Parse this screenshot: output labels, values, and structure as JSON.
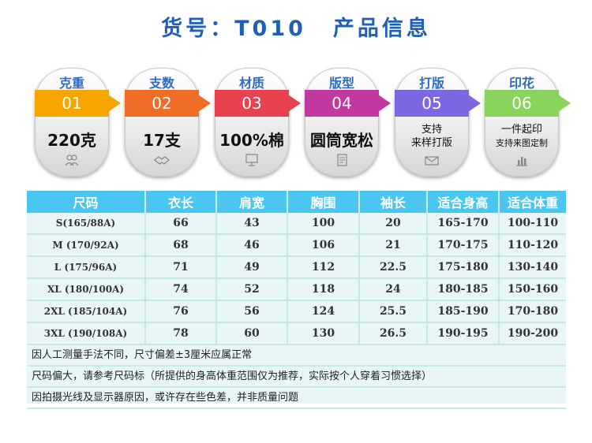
{
  "header": {
    "item_no": "货号：T010",
    "title": "产品信息"
  },
  "cards": [
    {
      "label": "克重",
      "index": "01",
      "value": "220克",
      "color": "#f7a600",
      "label_color": "#2d6bc4",
      "icon": "people-icon"
    },
    {
      "label": "支数",
      "index": "02",
      "value": "17支",
      "color": "#ef6d25",
      "label_color": "#2d6bc4",
      "icon": "handshake-icon"
    },
    {
      "label": "材质",
      "index": "03",
      "value": "100%棉",
      "color": "#e8424f",
      "label_color": "#2d6bc4",
      "icon": "monitor-icon"
    },
    {
      "label": "版型",
      "index": "04",
      "value": "圆筒宽松",
      "color": "#c1389f",
      "label_color": "#2d6bc4",
      "icon": "document-icon"
    },
    {
      "label": "打版",
      "index": "05",
      "value_lines": [
        "支持",
        "来样打版"
      ],
      "color": "#7b69e4",
      "label_color": "#2d6bc4",
      "icon": "mail-icon"
    },
    {
      "label": "印花",
      "index": "06",
      "value_lines": [
        "一件起印",
        "支持来图定制"
      ],
      "color": "#8ad35c",
      "label_color": "#2d6bc4",
      "icon": "chart-icon"
    }
  ],
  "size_table": {
    "headers": [
      "尺码",
      "衣长",
      "肩宽",
      "胸围",
      "袖长",
      "适合身高",
      "适合体重"
    ],
    "rows": [
      [
        "S(165/88A)",
        "66",
        "43",
        "100",
        "20",
        "165-170",
        "100-110"
      ],
      [
        "M (170/92A)",
        "68",
        "46",
        "106",
        "21",
        "170-175",
        "110-120"
      ],
      [
        "L (175/96A)",
        "71",
        "49",
        "112",
        "22.5",
        "175-180",
        "130-140"
      ],
      [
        "XL (180/100A)",
        "74",
        "52",
        "118",
        "24",
        "180-185",
        "150-160"
      ],
      [
        "2XL (185/104A)",
        "76",
        "56",
        "124",
        "25.5",
        "185-190",
        "170-180"
      ],
      [
        "3XL (190/108A)",
        "78",
        "60",
        "130",
        "26.5",
        "190-195",
        "190-200"
      ]
    ]
  },
  "notes": [
    "因人工测量手法不同，尺寸偏差±3厘米应属正常",
    "尺码偏大，请参考尺码标（所提供的身高体重范围仅为推荐，实际按个人穿着习惯选择）",
    "因拍摄光线及显示器原因，或许存在些色差，并非质量问题"
  ]
}
